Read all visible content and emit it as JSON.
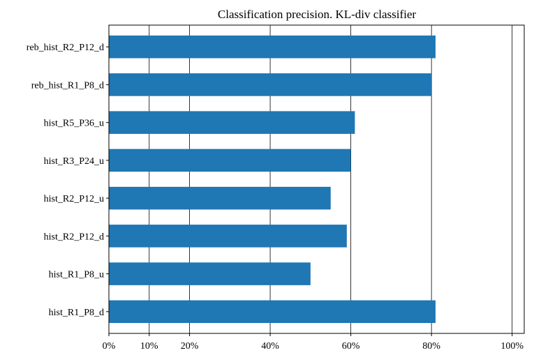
{
  "chart_data": {
    "type": "bar",
    "orientation": "horizontal",
    "title": "Classification precision. KL-div classifier",
    "xlabel": "",
    "ylabel": "",
    "categories": [
      "reb_hist_R2_P12_d",
      "reb_hist_R1_P8_d",
      "hist_R5_P36_u",
      "hist_R3_P24_u",
      "hist_R2_P12_u",
      "hist_R2_P12_d",
      "hist_R1_P8_u",
      "hist_R1_P8_d"
    ],
    "values": [
      0.81,
      0.8,
      0.61,
      0.6,
      0.55,
      0.59,
      0.5,
      0.81
    ],
    "xlim": [
      0,
      1.03
    ],
    "x_ticks": [
      0,
      0.1,
      0.2,
      0.4,
      0.6,
      0.8,
      1.0
    ],
    "x_tick_labels": [
      "0%",
      "10%",
      "20%",
      "40%",
      "60%",
      "80%",
      "100%"
    ],
    "grid": "vertical",
    "legend": "none",
    "bar_color": "#1f77b4"
  }
}
